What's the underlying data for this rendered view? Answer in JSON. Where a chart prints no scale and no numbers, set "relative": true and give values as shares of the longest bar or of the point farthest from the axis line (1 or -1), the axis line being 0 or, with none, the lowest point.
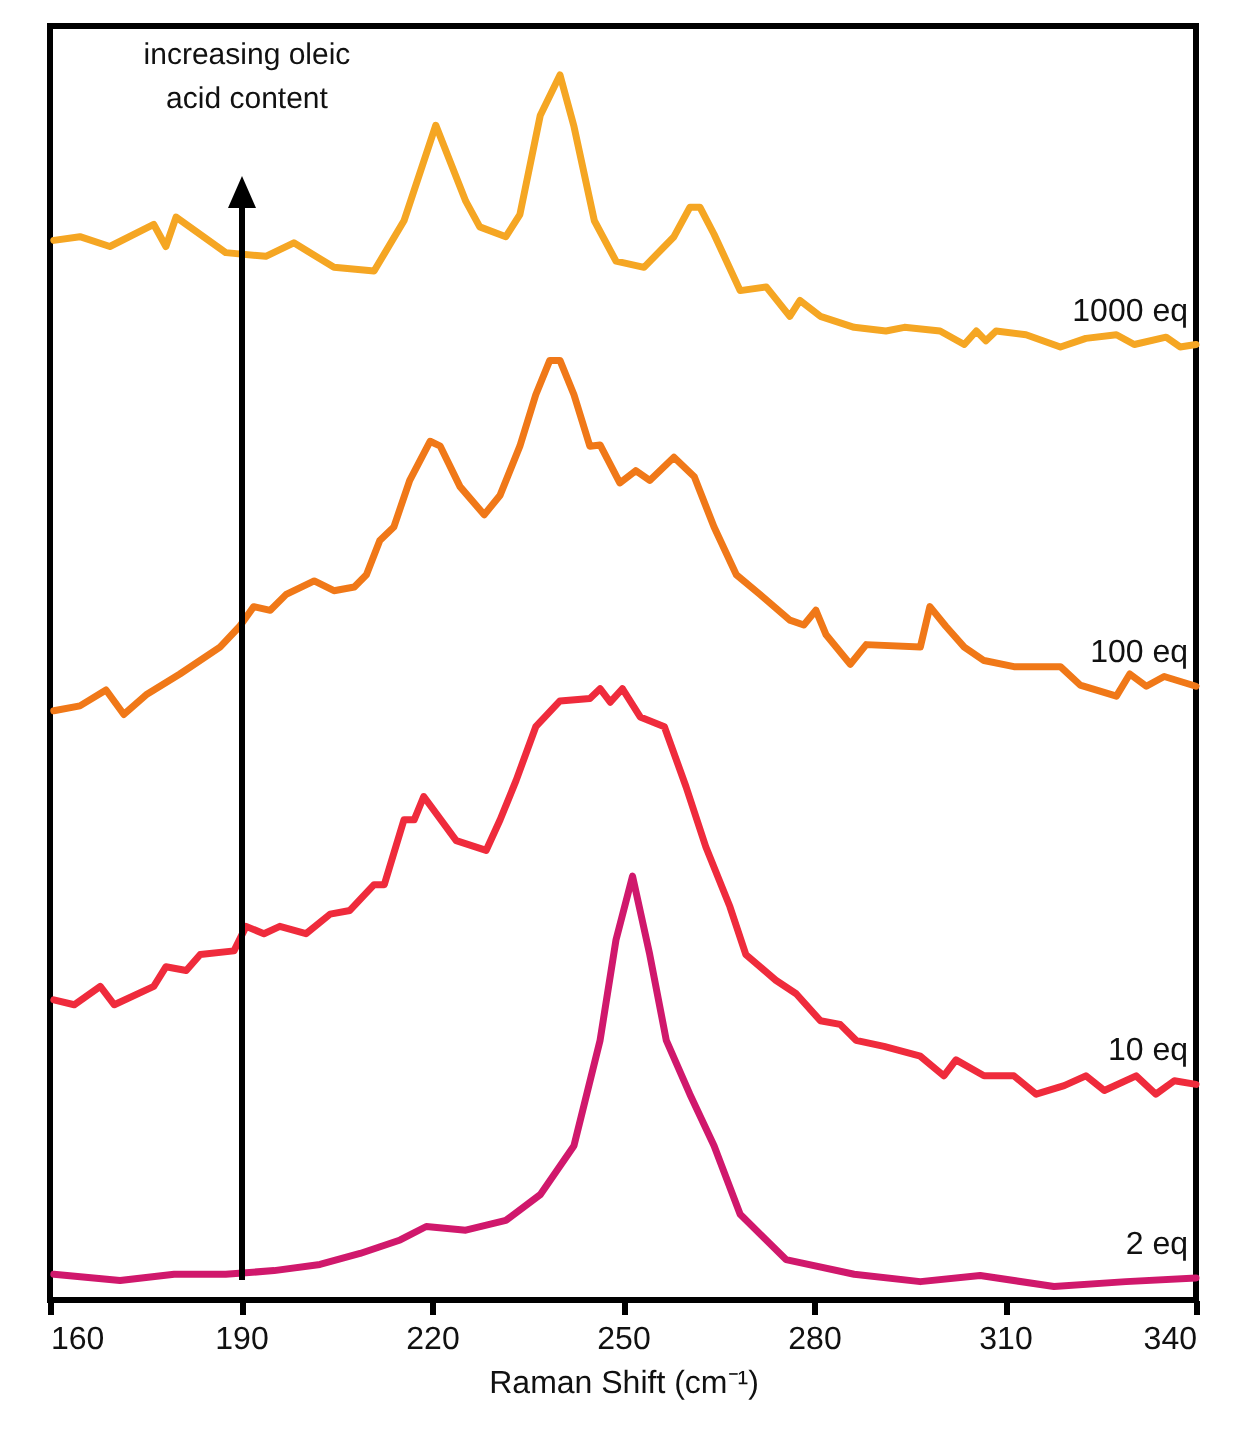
{
  "chart_data": {
    "type": "line",
    "relative": true,
    "line_style": "solid",
    "xlabel": "Raman Shift (cm⁻¹)",
    "xlim": [
      160,
      340
    ],
    "xticks": [
      160,
      190,
      220,
      250,
      280,
      310,
      340
    ],
    "annotations": [
      "increasing oleic acid content"
    ],
    "series": [
      {
        "name": "1000 eq",
        "color": "#f5a623",
        "x": [
          160.6,
          164.7,
          169.4,
          176.3,
          178.2,
          179.8,
          187.6,
          193.9,
          198.3,
          204.6,
          210.9,
          215.6,
          220.6,
          225.3,
          227.5,
          231.6,
          233.8,
          237,
          240.1,
          242.3,
          245.5,
          248.9,
          253.3,
          258,
          260.5,
          262.1,
          264.3,
          268.4,
          272.5,
          276.2,
          277.8,
          281,
          286.3,
          291.3,
          294.2,
          299.8,
          303.6,
          305.5,
          307,
          308.6,
          313.3,
          318.7,
          322.7,
          327.5,
          330.3,
          335.3,
          337.5,
          340
        ],
        "values": [
          0.865,
          0.868,
          0.86,
          0.878,
          0.86,
          0.884,
          0.855,
          0.852,
          0.863,
          0.843,
          0.84,
          0.881,
          0.959,
          0.897,
          0.876,
          0.868,
          0.886,
          0.967,
          1,
          0.958,
          0.881,
          0.848,
          0.843,
          0.868,
          0.892,
          0.892,
          0.87,
          0.824,
          0.827,
          0.803,
          0.816,
          0.803,
          0.794,
          0.791,
          0.794,
          0.791,
          0.78,
          0.791,
          0.783,
          0.791,
          0.788,
          0.778,
          0.785,
          0.788,
          0.78,
          0.786,
          0.778,
          0.78
        ]
      },
      {
        "name": "100 eq",
        "color": "#f07818",
        "x": [
          160.6,
          164.7,
          168.8,
          171.6,
          175.1,
          180.4,
          186.7,
          189.8,
          192,
          194.6,
          197.1,
          201.5,
          204.6,
          207.8,
          209.7,
          211.8,
          214,
          216.5,
          219.7,
          221.3,
          224.4,
          228.2,
          230.7,
          233.8,
          236.3,
          238.5,
          240.1,
          242.3,
          244.8,
          246.4,
          249.5,
          252,
          254.2,
          258,
          261.2,
          264.3,
          267.8,
          271.5,
          276.2,
          278.4,
          280.3,
          281.9,
          285.7,
          288.2,
          296.7,
          298.2,
          300.7,
          303.6,
          306.7,
          311.4,
          318.7,
          321.8,
          327.5,
          329.6,
          332.2,
          335,
          340
        ],
        "values": [
          0.481,
          0.485,
          0.498,
          0.478,
          0.494,
          0.511,
          0.533,
          0.55,
          0.566,
          0.563,
          0.576,
          0.587,
          0.579,
          0.582,
          0.592,
          0.62,
          0.631,
          0.669,
          0.701,
          0.697,
          0.664,
          0.641,
          0.657,
          0.697,
          0.739,
          0.767,
          0.767,
          0.739,
          0.697,
          0.698,
          0.667,
          0.677,
          0.669,
          0.688,
          0.672,
          0.631,
          0.592,
          0.576,
          0.555,
          0.551,
          0.563,
          0.543,
          0.519,
          0.535,
          0.533,
          0.566,
          0.55,
          0.533,
          0.522,
          0.517,
          0.517,
          0.502,
          0.493,
          0.511,
          0.501,
          0.509,
          0.501
        ]
      },
      {
        "name": "10 eq",
        "color": "#ef2b3c",
        "x": [
          160.6,
          163.8,
          167.9,
          170.1,
          176.3,
          178.2,
          181.4,
          183.6,
          188.9,
          190.8,
          193.6,
          196.1,
          200.2,
          204,
          207.1,
          210.9,
          212.5,
          215.6,
          217.2,
          218.7,
          223.8,
          228.5,
          230.7,
          233.2,
          236.3,
          240.1,
          244.8,
          246.4,
          248,
          249.9,
          252.7,
          256.5,
          259.9,
          263,
          266.8,
          269.3,
          274,
          277.2,
          281,
          284.1,
          286.6,
          291,
          296.7,
          300.4,
          302.3,
          306.7,
          311.4,
          314.9,
          319.3,
          322.7,
          325.6,
          330.6,
          333.7,
          336.6,
          340
        ],
        "values": [
          0.245,
          0.241,
          0.256,
          0.241,
          0.256,
          0.272,
          0.269,
          0.282,
          0.285,
          0.305,
          0.299,
          0.305,
          0.299,
          0.315,
          0.318,
          0.339,
          0.339,
          0.392,
          0.392,
          0.411,
          0.375,
          0.367,
          0.392,
          0.424,
          0.468,
          0.489,
          0.491,
          0.499,
          0.488,
          0.499,
          0.476,
          0.468,
          0.419,
          0.37,
          0.321,
          0.282,
          0.261,
          0.25,
          0.228,
          0.225,
          0.212,
          0.207,
          0.199,
          0.183,
          0.196,
          0.183,
          0.183,
          0.168,
          0.175,
          0.183,
          0.171,
          0.183,
          0.168,
          0.179,
          0.176
        ]
      },
      {
        "name": "2 eq",
        "color": "#d0186c",
        "x": [
          160.6,
          171,
          179.5,
          187.6,
          195.2,
          202.4,
          208.7,
          215,
          219.1,
          225.3,
          231.6,
          237,
          242.3,
          246.4,
          248.9,
          251.5,
          254.2,
          256.8,
          260.5,
          264.3,
          268.4,
          275.6,
          286.3,
          296.7,
          306.1,
          317.7,
          329,
          340
        ],
        "values": [
          0.021,
          0.016,
          0.021,
          0.021,
          0.024,
          0.029,
          0.038,
          0.049,
          0.06,
          0.057,
          0.065,
          0.086,
          0.126,
          0.212,
          0.294,
          0.346,
          0.282,
          0.212,
          0.168,
          0.126,
          0.07,
          0.033,
          0.021,
          0.015,
          0.02,
          0.011,
          0.015,
          0.018
        ]
      }
    ]
  }
}
